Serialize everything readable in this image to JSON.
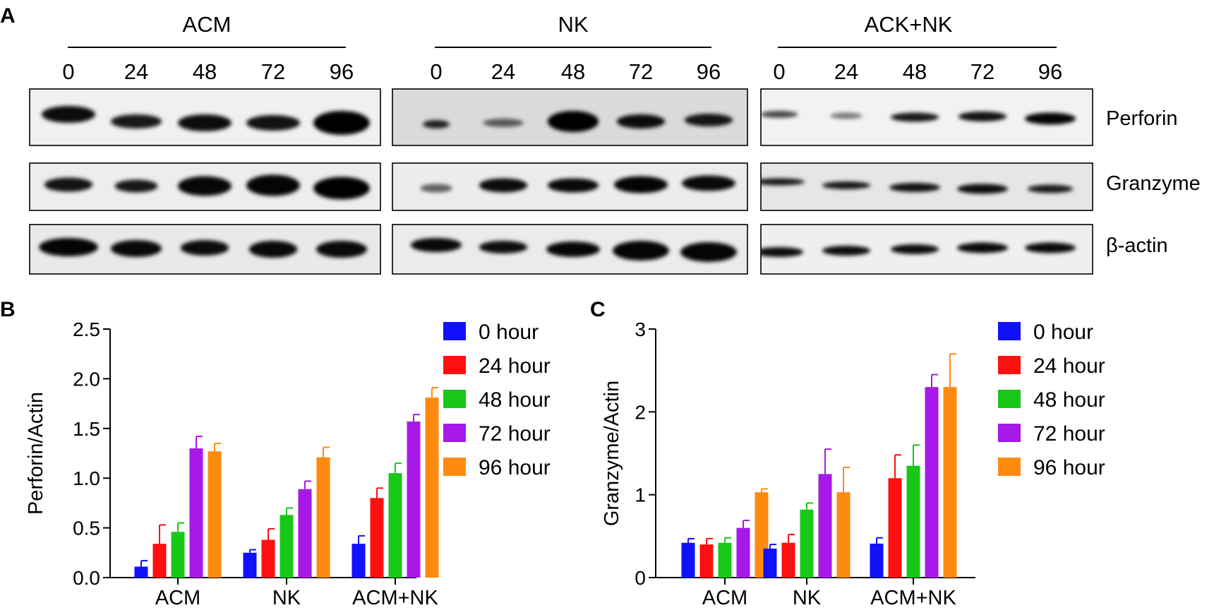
{
  "panels": {
    "a": "A",
    "b": "B",
    "c": "C"
  },
  "blot": {
    "groups": [
      {
        "name": "ACM",
        "lanes": [
          "0",
          "24",
          "48",
          "72",
          "96"
        ]
      },
      {
        "name": "NK",
        "lanes": [
          "0",
          "24",
          "48",
          "72",
          "96"
        ]
      },
      {
        "name": "ACK+NK",
        "lanes": [
          "0",
          "24",
          "48",
          "72",
          "96"
        ]
      }
    ],
    "proteins": [
      "Perforin",
      "Granzyme",
      "β-actin"
    ]
  },
  "chart_data": [
    {
      "type": "bar",
      "title": "",
      "xlabel": "",
      "ylabel": "Perforin/Actin",
      "ylim": [
        0,
        2.5
      ],
      "yticks": [
        0.0,
        0.5,
        1.0,
        1.5,
        2.0,
        2.5
      ],
      "ytick_labels": [
        "0.0",
        "0.5",
        "1.0",
        "1.5",
        "2.0",
        "2.5"
      ],
      "categories": [
        "ACM",
        "NK",
        "ACM+NK"
      ],
      "series": [
        {
          "name": "0 hour",
          "color": "#1010ff",
          "values": [
            0.11,
            0.25,
            0.34
          ],
          "errors": [
            0.06,
            0.03,
            0.08
          ]
        },
        {
          "name": "24 hour",
          "color": "#ff1010",
          "values": [
            0.34,
            0.38,
            0.8
          ],
          "errors": [
            0.19,
            0.11,
            0.1
          ]
        },
        {
          "name": "48 hour",
          "color": "#18c818",
          "values": [
            0.46,
            0.63,
            1.05
          ],
          "errors": [
            0.09,
            0.07,
            0.1
          ]
        },
        {
          "name": "72 hour",
          "color": "#a818e8",
          "values": [
            1.3,
            0.89,
            1.57
          ],
          "errors": [
            0.12,
            0.08,
            0.07
          ]
        },
        {
          "name": "96 hour",
          "color": "#ff8a10",
          "values": [
            1.27,
            1.21,
            1.81
          ],
          "errors": [
            0.08,
            0.1,
            0.1
          ]
        }
      ],
      "legend": "right"
    },
    {
      "type": "bar",
      "title": "",
      "xlabel": "",
      "ylabel": "Granzyme/Actin",
      "ylim": [
        0,
        3
      ],
      "yticks": [
        0,
        1,
        2,
        3
      ],
      "ytick_labels": [
        "0",
        "1",
        "2",
        "3"
      ],
      "categories": [
        "ACM",
        "NK",
        "ACM+NK"
      ],
      "series": [
        {
          "name": "0 hour",
          "color": "#1010ff",
          "values": [
            0.42,
            0.35,
            0.41
          ],
          "errors": [
            0.05,
            0.05,
            0.07
          ]
        },
        {
          "name": "24 hour",
          "color": "#ff1010",
          "values": [
            0.4,
            0.42,
            1.2
          ],
          "errors": [
            0.07,
            0.1,
            0.28
          ]
        },
        {
          "name": "48 hour",
          "color": "#18c818",
          "values": [
            0.42,
            0.82,
            1.35
          ],
          "errors": [
            0.06,
            0.08,
            0.25
          ]
        },
        {
          "name": "72 hour",
          "color": "#a818e8",
          "values": [
            0.6,
            1.25,
            2.3
          ],
          "errors": [
            0.09,
            0.3,
            0.15
          ]
        },
        {
          "name": "96 hour",
          "color": "#ff8a10",
          "values": [
            1.03,
            1.03,
            2.3
          ],
          "errors": [
            0.04,
            0.3,
            0.4
          ]
        }
      ],
      "legend": "right"
    }
  ]
}
